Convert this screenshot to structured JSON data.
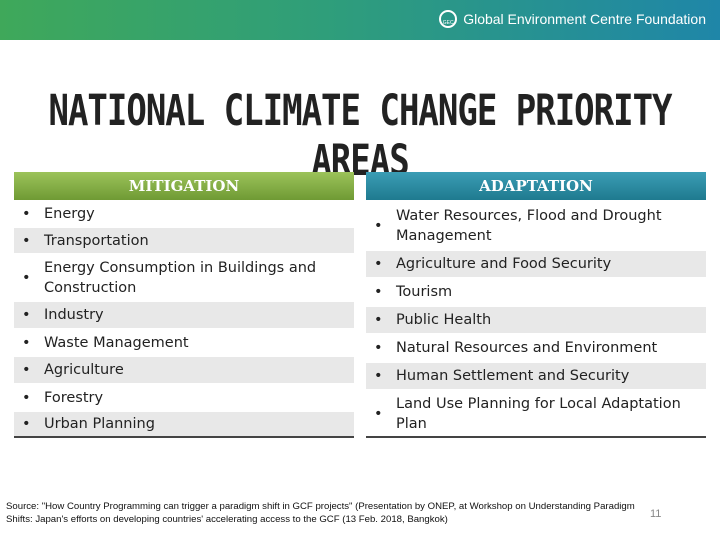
{
  "header": {
    "org": "Global Environment Centre Foundation",
    "logo_text": "GEC"
  },
  "title": "NATIONAL CLIMATE CHANGE PRIORITY AREAS",
  "columns": [
    {
      "heading": "MITIGATION",
      "items": [
        "Energy",
        "Transportation",
        "Energy Consumption in Buildings and Construction",
        "Industry",
        "Waste Management",
        "Agriculture",
        "Forestry",
        "Urban Planning"
      ]
    },
    {
      "heading": "ADAPTATION",
      "items": [
        "Water Resources, Flood and Drought Management",
        "Agriculture and Food Security",
        "Tourism",
        "Public Health",
        "Natural Resources and Environment",
        "Human Settlement and Security",
        "Land Use Planning for Local Adaptation Plan"
      ]
    }
  ],
  "source": "Source: \"How Country Programming can trigger a paradigm shift in GCF projects\" (Presentation by ONEP, at Workshop on Understanding Paradigm Shifts: Japan's efforts on developing countries' accelerating access to the GCF (13 Feb. 2018, Bangkok)",
  "page_number": "11"
}
